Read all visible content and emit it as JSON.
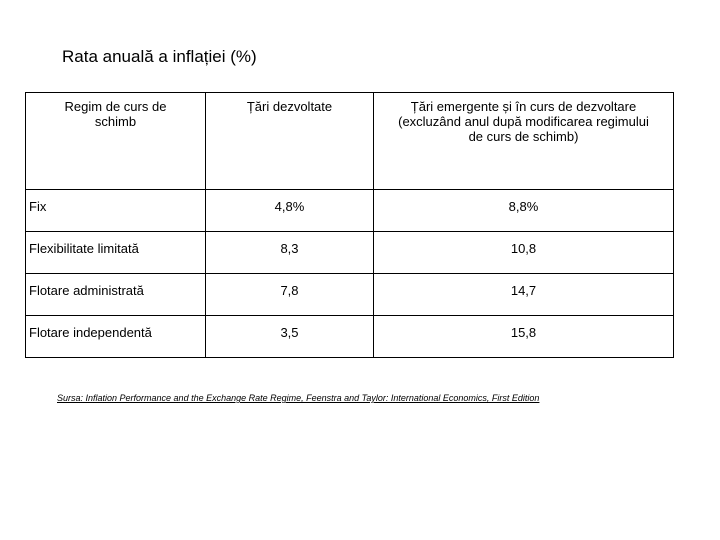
{
  "title": "Rata anuală a inflației (%)",
  "table": {
    "header": [
      "Regim de curs de schimb",
      "Țări dezvoltate",
      "Țări emergente și în curs de dezvoltare (excluzând anul după modificarea regimului de curs de schimb)"
    ],
    "rows": [
      [
        "Fix",
        "4,8%",
        "8,8%"
      ],
      [
        "Flexibilitate limitată",
        "8,3",
        "10,8"
      ],
      [
        "Flotare administrată",
        "7,8",
        "14,7"
      ],
      [
        "Flotare independentă",
        "3,5",
        "15,8"
      ]
    ]
  },
  "source": "Sursa: Inflation Performance and the Exchange Rate Regime, Feenstra and Taylor: International Economics, First Edition"
}
